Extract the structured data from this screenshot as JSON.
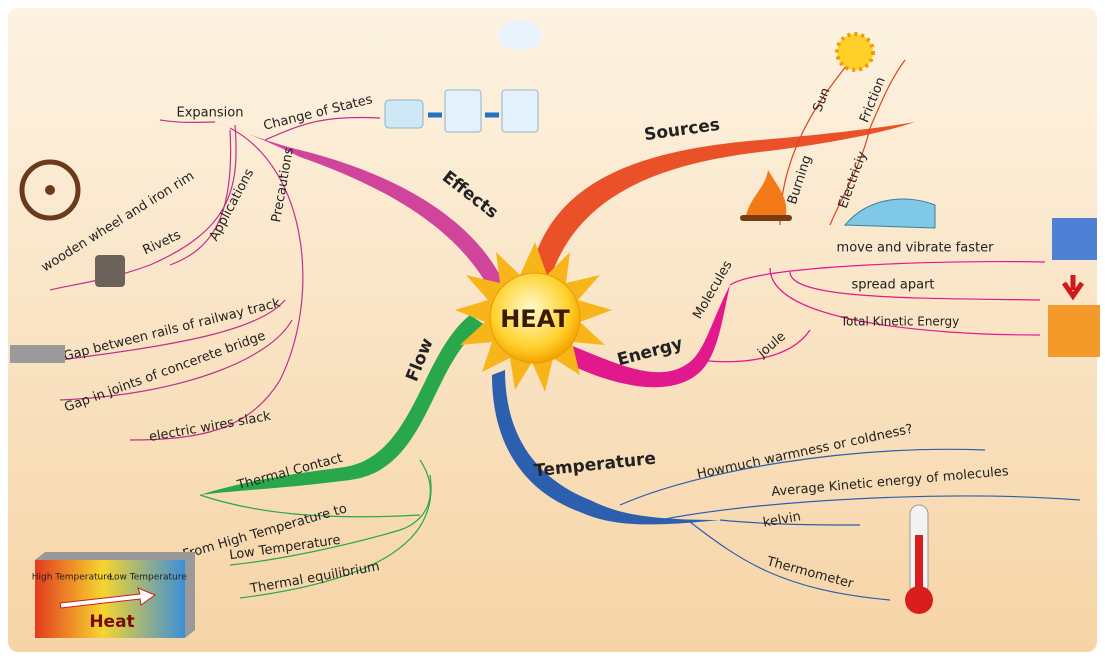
{
  "center": "HEAT",
  "branches": {
    "effects": {
      "label": "Effects",
      "expansion": "Expansion",
      "change_of_states": "Change of States",
      "applications": "Applications",
      "precautions": "Precautions",
      "application_items": [
        "wooden wheel and iron rim",
        "Rivets"
      ],
      "precaution_items": [
        "Gap between rails of railway track",
        "Gap in joints of concerete bridge",
        "electric wires slack"
      ]
    },
    "sources": {
      "label": "Sources",
      "items": [
        "Sun",
        "Friction",
        "Burning",
        "Electriciy"
      ]
    },
    "energy": {
      "label": "Energy",
      "molecules": "Molecules",
      "joule": "joule",
      "molecule_items": [
        "move and vibrate faster",
        "spread apart",
        "Total Kinetic Energy"
      ]
    },
    "flow": {
      "label": "Flow",
      "items": [
        "Thermal Contact",
        "From High Temperature to",
        "Low Temperature",
        "Thermal equilibrium"
      ]
    },
    "temperature": {
      "label": "Temperature",
      "items": [
        "Howmuch warmness or coldness?",
        "Average Kinetic energy of molecules",
        "kelvin",
        "Thermometer"
      ]
    }
  },
  "heat_box": {
    "high": "High Temperature",
    "low": "Low Temperature",
    "label": "Heat"
  }
}
